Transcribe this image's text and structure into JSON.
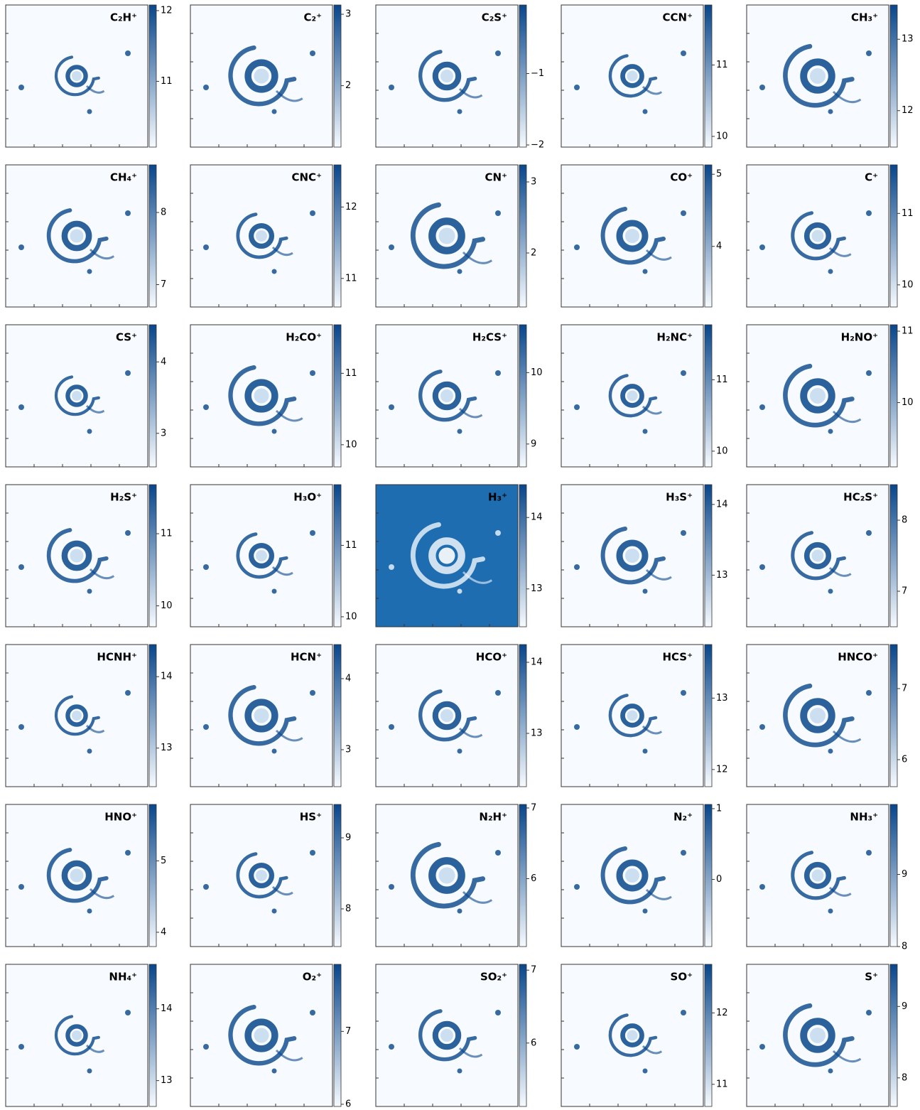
{
  "chart_data": [
    {
      "type": "heatmap",
      "title": "C₂H⁺",
      "cmap": [
        "#f7fbff",
        "#08468b"
      ],
      "colorbar_lim": [
        10.07,
        12.08
      ],
      "colorbar_ticks": [
        11,
        12
      ]
    },
    {
      "type": "heatmap",
      "title": "C₂⁺",
      "cmap": [
        "#f7fbff",
        "#08468b"
      ],
      "colorbar_lim": [
        1.14,
        3.13
      ],
      "colorbar_ticks": [
        2,
        3
      ]
    },
    {
      "type": "heatmap",
      "title": "C₂S⁺",
      "cmap": [
        "#f7fbff",
        "#08468b"
      ],
      "colorbar_lim": [
        -2.03,
        -0.04
      ],
      "colorbar_ticks": [
        {
          "value": -2,
          "label": "−2"
        },
        {
          "value": -1,
          "label": "−1"
        }
      ]
    },
    {
      "type": "heatmap",
      "title": "CCN⁺",
      "cmap": [
        "#f7fbff",
        "#08468b"
      ],
      "colorbar_lim": [
        9.85,
        11.84
      ],
      "colorbar_ticks": [
        10,
        11
      ]
    },
    {
      "type": "heatmap",
      "title": "CH₃⁺",
      "cmap": [
        "#f7fbff",
        "#08468b"
      ],
      "colorbar_lim": [
        11.49,
        13.48
      ],
      "colorbar_ticks": [
        12,
        13
      ]
    },
    {
      "type": "heatmap",
      "title": "CH₄⁺",
      "cmap": [
        "#f7fbff",
        "#08468b"
      ],
      "colorbar_lim": [
        6.69,
        8.66
      ],
      "colorbar_ticks": [
        7,
        8
      ]
    },
    {
      "type": "heatmap",
      "title": "CNC⁺",
      "cmap": [
        "#f7fbff",
        "#08468b"
      ],
      "colorbar_lim": [
        10.6,
        12.59
      ],
      "colorbar_ticks": [
        11,
        12
      ]
    },
    {
      "type": "heatmap",
      "title": "CN⁺",
      "cmap": [
        "#f7fbff",
        "#08468b"
      ],
      "colorbar_lim": [
        1.24,
        3.24
      ],
      "colorbar_ticks": [
        2,
        3
      ]
    },
    {
      "type": "heatmap",
      "title": "CO⁺",
      "cmap": [
        "#f7fbff",
        "#08468b"
      ],
      "colorbar_lim": [
        3.16,
        5.13
      ],
      "colorbar_ticks": [
        4,
        5
      ]
    },
    {
      "type": "heatmap",
      "title": "C⁺",
      "cmap": [
        "#f7fbff",
        "#08468b"
      ],
      "colorbar_lim": [
        9.69,
        11.68
      ],
      "colorbar_ticks": [
        10,
        11
      ]
    },
    {
      "type": "heatmap",
      "title": "CS⁺",
      "cmap": [
        "#f7fbff",
        "#08468b"
      ],
      "colorbar_lim": [
        2.53,
        4.52
      ],
      "colorbar_ticks": [
        3,
        4
      ]
    },
    {
      "type": "heatmap",
      "title": "H₂CO⁺",
      "cmap": [
        "#f7fbff",
        "#08468b"
      ],
      "colorbar_lim": [
        9.69,
        11.68
      ],
      "colorbar_ticks": [
        10,
        11
      ]
    },
    {
      "type": "heatmap",
      "title": "H₂CS⁺",
      "cmap": [
        "#f7fbff",
        "#08468b"
      ],
      "colorbar_lim": [
        8.68,
        10.67
      ],
      "colorbar_ticks": [
        9,
        10
      ]
    },
    {
      "type": "heatmap",
      "title": "H₂NC⁺",
      "cmap": [
        "#f7fbff",
        "#08468b"
      ],
      "colorbar_lim": [
        9.78,
        11.77
      ],
      "colorbar_ticks": [
        10,
        11
      ]
    },
    {
      "type": "heatmap",
      "title": "H₂NO⁺",
      "cmap": [
        "#f7fbff",
        "#08468b"
      ],
      "colorbar_lim": [
        9.1,
        11.09
      ],
      "colorbar_ticks": [
        10,
        11
      ]
    },
    {
      "type": "heatmap",
      "title": "H₂S⁺",
      "cmap": [
        "#f7fbff",
        "#08468b"
      ],
      "colorbar_lim": [
        9.71,
        11.68
      ],
      "colorbar_ticks": [
        10,
        11
      ]
    },
    {
      "type": "heatmap",
      "title": "H₃O⁺",
      "cmap": [
        "#f7fbff",
        "#08468b"
      ],
      "colorbar_lim": [
        9.86,
        11.85
      ],
      "colorbar_ticks": [
        10,
        11
      ]
    },
    {
      "type": "heatmap",
      "title": "H₃⁺",
      "cmap": [
        "#f7fbff",
        "#08468b"
      ],
      "colorbar_lim": [
        12.47,
        14.46
      ],
      "colorbar_ticks": [
        13,
        14
      ]
    },
    {
      "type": "heatmap",
      "title": "H₃S⁺",
      "cmap": [
        "#f7fbff",
        "#08468b"
      ],
      "colorbar_lim": [
        12.27,
        14.28
      ],
      "colorbar_ticks": [
        13,
        14
      ]
    },
    {
      "type": "heatmap",
      "title": "HC₂S⁺",
      "cmap": [
        "#f7fbff",
        "#08468b"
      ],
      "colorbar_lim": [
        6.5,
        8.5
      ],
      "colorbar_ticks": [
        7,
        8
      ]
    },
    {
      "type": "heatmap",
      "title": "HCNH⁺",
      "cmap": [
        "#f7fbff",
        "#08468b"
      ],
      "colorbar_lim": [
        12.46,
        14.45
      ],
      "colorbar_ticks": [
        13,
        14
      ]
    },
    {
      "type": "heatmap",
      "title": "HCN⁺",
      "cmap": [
        "#f7fbff",
        "#08468b"
      ],
      "colorbar_lim": [
        2.48,
        4.48
      ],
      "colorbar_ticks": [
        3,
        4
      ]
    },
    {
      "type": "heatmap",
      "title": "HCO⁺",
      "cmap": [
        "#f7fbff",
        "#08468b"
      ],
      "colorbar_lim": [
        12.25,
        14.25
      ],
      "colorbar_ticks": [
        13,
        14
      ]
    },
    {
      "type": "heatmap",
      "title": "HCS⁺",
      "cmap": [
        "#f7fbff",
        "#08468b"
      ],
      "colorbar_lim": [
        11.76,
        13.75
      ],
      "colorbar_ticks": [
        12,
        13
      ]
    },
    {
      "type": "heatmap",
      "title": "HNCO⁺",
      "cmap": [
        "#f7fbff",
        "#08468b"
      ],
      "colorbar_lim": [
        5.62,
        7.62
      ],
      "colorbar_ticks": [
        6,
        7
      ]
    },
    {
      "type": "heatmap",
      "title": "HNO⁺",
      "cmap": [
        "#f7fbff",
        "#08468b"
      ],
      "colorbar_lim": [
        3.8,
        5.79
      ],
      "colorbar_ticks": [
        4,
        5
      ]
    },
    {
      "type": "heatmap",
      "title": "HS⁺",
      "cmap": [
        "#f7fbff",
        "#08468b"
      ],
      "colorbar_lim": [
        7.47,
        9.47
      ],
      "colorbar_ticks": [
        8,
        9
      ]
    },
    {
      "type": "heatmap",
      "title": "N₂H⁺",
      "cmap": [
        "#f7fbff",
        "#08468b"
      ],
      "colorbar_lim": [
        5.04,
        7.05
      ],
      "colorbar_ticks": [
        6,
        7
      ]
    },
    {
      "type": "heatmap",
      "title": "N₂⁺",
      "cmap": [
        "#f7fbff",
        "#08468b"
      ],
      "colorbar_lim": [
        -0.95,
        1.06
      ],
      "colorbar_ticks": [
        0,
        1
      ]
    },
    {
      "type": "heatmap",
      "title": "NH₃⁺",
      "cmap": [
        "#f7fbff",
        "#08468b"
      ],
      "colorbar_lim": [
        8.0,
        9.97
      ],
      "colorbar_ticks": [
        8,
        9
      ]
    },
    {
      "type": "heatmap",
      "title": "NH₄⁺",
      "cmap": [
        "#f7fbff",
        "#08468b"
      ],
      "colorbar_lim": [
        12.64,
        14.62
      ],
      "colorbar_ticks": [
        13,
        14
      ]
    },
    {
      "type": "heatmap",
      "title": "O₂⁺",
      "cmap": [
        "#f7fbff",
        "#08468b"
      ],
      "colorbar_lim": [
        5.97,
        7.92
      ],
      "colorbar_ticks": [
        6,
        7
      ]
    },
    {
      "type": "heatmap",
      "title": "SO₂⁺",
      "cmap": [
        "#f7fbff",
        "#08468b"
      ],
      "colorbar_lim": [
        5.13,
        7.08
      ],
      "colorbar_ticks": [
        6,
        7
      ]
    },
    {
      "type": "heatmap",
      "title": "SO⁺",
      "cmap": [
        "#f7fbff",
        "#08468b"
      ],
      "colorbar_lim": [
        10.69,
        12.68
      ],
      "colorbar_ticks": [
        11,
        12
      ]
    },
    {
      "type": "heatmap",
      "title": "S⁺",
      "cmap": [
        "#f7fbff",
        "#08468b"
      ],
      "colorbar_lim": [
        7.6,
        9.59
      ],
      "colorbar_ticks": [
        8,
        9
      ]
    }
  ]
}
